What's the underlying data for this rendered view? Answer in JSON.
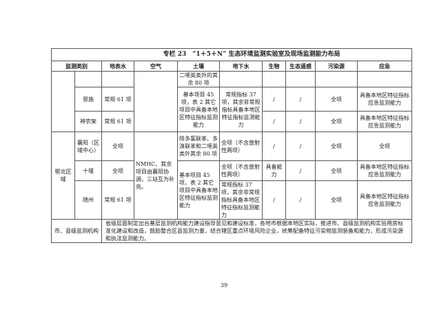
{
  "title": "专栏 23　“1＋5＋N” 生态环境监测实验室及现场监测能力布局",
  "headers": [
    "监测类别",
    "地表水",
    "空气",
    "土壤",
    "地下水",
    "生物",
    "生态遥感",
    "污染源",
    "应急"
  ],
  "rows": {
    "r1": {
      "soil": "二噁英类外的其余 80 项"
    },
    "r2": {
      "sub": "恩施",
      "water": "常规 61 项",
      "soil": "基本项目 45 项，表 2 其它项目中具备本地区特征指标监测能力",
      "ground": "常规指标 37 项，其余非常规指标具备本地区特征指标监测能力",
      "bio": "/",
      "rs": "/",
      "pol": "全项",
      "emerg": "具备本地区特征指标应急监测能力"
    },
    "r3": {
      "sub": "神农架",
      "water": "常规 61 项",
      "bio": "/",
      "rs": "/",
      "pol": "全项",
      "emerg": "具备本地区特征指标应急监测能力"
    },
    "r4": {
      "group": "鄂北区域",
      "sub": "襄阳（区域中心）",
      "water": "全项",
      "air": "NMHC、其余项目由襄阳协调，三站互为补充。",
      "soil": "除多氯联苯、多溴联苯和二噁英类外其余 80 项",
      "ground": "全项（不含放射性两项）",
      "bio": "/",
      "rs": "/",
      "pol": "全项",
      "emerg": "全项"
    },
    "r5": {
      "sub": "十堰",
      "water": "全项",
      "soil": "基本项目 45 项，表 2 其它项目中具备本地区特征指标监测能力",
      "ground": "全项（不含放射性两项）",
      "bio": "具备能力",
      "rs": "/",
      "pol": "全项",
      "emerg": "具备本地区特征指标应急监测能力"
    },
    "r6": {
      "sub": "随州",
      "water": "常规 61 项",
      "ground": "常规指标 37 项，其余非常规指标具备本地区特征指标监测能力",
      "bio": "/",
      "rs": "/",
      "pol": "全项",
      "emerg": "具备本地区特征指标应急监测能力"
    }
  },
  "footer": {
    "label": "市、县级监测机构",
    "text": "省级层面制定出台基层监测机构能力建设指导意见和建设标准，各地市根据本地区实际，推进市、县级监测机构实验用房标准化建设和改造，鼓励整合区县监测力量，结合辖区重点环境风险企业，统筹配备特征污染物监测装备和能力，形成污染源和执法监测能力。"
  },
  "page_number": "39"
}
